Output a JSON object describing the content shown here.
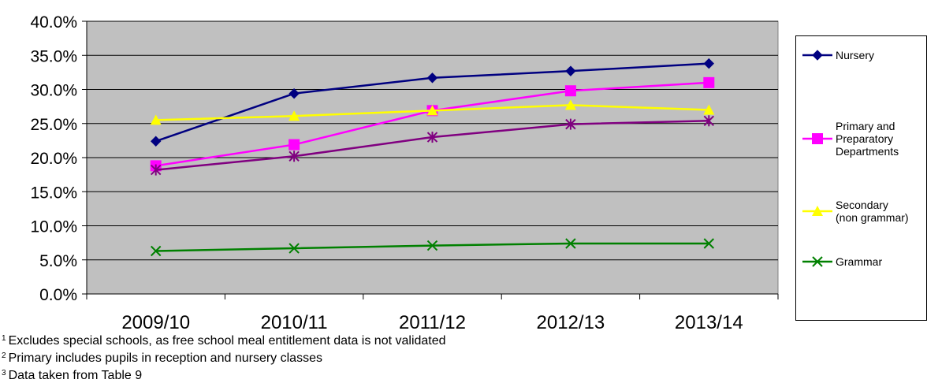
{
  "chart_data": {
    "type": "line",
    "title": "",
    "xlabel": "",
    "ylabel": "",
    "categories": [
      "2009/10",
      "2010/11",
      "2011/12",
      "2012/13",
      "2013/14"
    ],
    "y_tick_labels": [
      "0.0%",
      "5.0%",
      "10.0%",
      "15.0%",
      "20.0%",
      "25.0%",
      "30.0%",
      "35.0%",
      "40.0%"
    ],
    "ylim": [
      0,
      40
    ],
    "y_unit": "%",
    "grid": "horizontal",
    "plot_background": "#c0c0c0",
    "legend_position": "right",
    "series": [
      {
        "name": "Nursery",
        "legend_lines": [
          "Nursery"
        ],
        "values": [
          22.4,
          29.4,
          31.7,
          32.7,
          33.8
        ],
        "color": "#000080",
        "marker": "diamond"
      },
      {
        "name": "Primary and Preparatory Departments",
        "legend_lines": [
          "Primary and",
          "Preparatory",
          "Departments"
        ],
        "values": [
          18.8,
          21.9,
          26.9,
          29.8,
          31.0
        ],
        "color": "#ff00ff",
        "marker": "square"
      },
      {
        "name": "Secondary (non grammar)",
        "legend_lines": [
          "Secondary",
          "(non grammar)"
        ],
        "values": [
          25.5,
          26.1,
          26.9,
          27.7,
          27.0
        ],
        "color": "#ffff00",
        "marker": "triangle"
      },
      {
        "name": "",
        "legend_lines": [],
        "values": [
          18.2,
          20.2,
          23.0,
          24.9,
          25.4
        ],
        "color": "#800080",
        "marker": "star"
      },
      {
        "name": "Grammar",
        "legend_lines": [
          "Grammar"
        ],
        "values": [
          6.3,
          6.7,
          7.1,
          7.4,
          7.4
        ],
        "color": "#008000",
        "marker": "x"
      }
    ]
  },
  "footnotes": [
    {
      "num": "1",
      "text": "Excludes special schools, as free school meal entitlement data is not validated"
    },
    {
      "num": "2",
      "text": "Primary includes pupils in reception and nursery classes"
    },
    {
      "num": "3",
      "text": "Data taken from Table 9"
    }
  ]
}
